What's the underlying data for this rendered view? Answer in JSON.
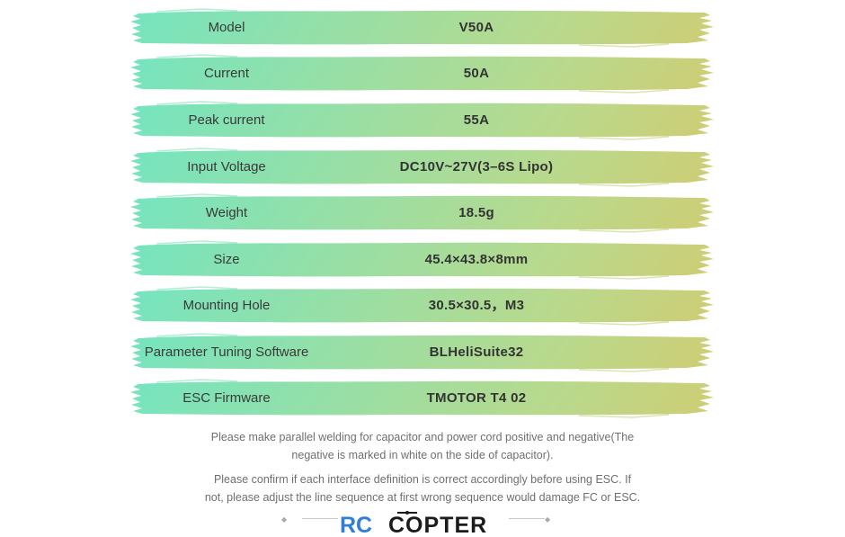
{
  "specs": [
    {
      "label": "Model",
      "value": "V50A"
    },
    {
      "label": "Current",
      "value": "50A"
    },
    {
      "label": "Peak current",
      "value": "55A"
    },
    {
      "label": "Input Voltage",
      "value": "DC10V~27V(3–6S Lipo)"
    },
    {
      "label": "Weight",
      "value": "18.5g"
    },
    {
      "label": "Size",
      "value": "45.4×43.8×8mm"
    },
    {
      "label": "Mounting Hole",
      "value": "30.5×30.5，M3"
    },
    {
      "label": "Parameter Tuning Software",
      "value": "BLHeliSuite32"
    },
    {
      "label": "ESC Firmware",
      "value": "TMOTOR T4 02"
    }
  ],
  "notes": {
    "welding_line1": "Please make parallel welding for capacitor and power cord positive and negative(The",
    "welding_line2": "negative is marked in white on the side of capacitor).",
    "confirm_line1": "Please confirm if each interface definition is correct accordingly before using ESC. If",
    "confirm_line2": "not, please adjust the line sequence at first wrong sequence would damage FC or ESC."
  },
  "logo": {
    "text_rc": "RC",
    "text_copter": "COPTER"
  },
  "colors": {
    "gradient_top_left": "#72e5c2",
    "gradient_bottom_right": "#f5b74a",
    "logo_rc": "#2f7fd8",
    "logo_copter": "#1b1b1b"
  }
}
